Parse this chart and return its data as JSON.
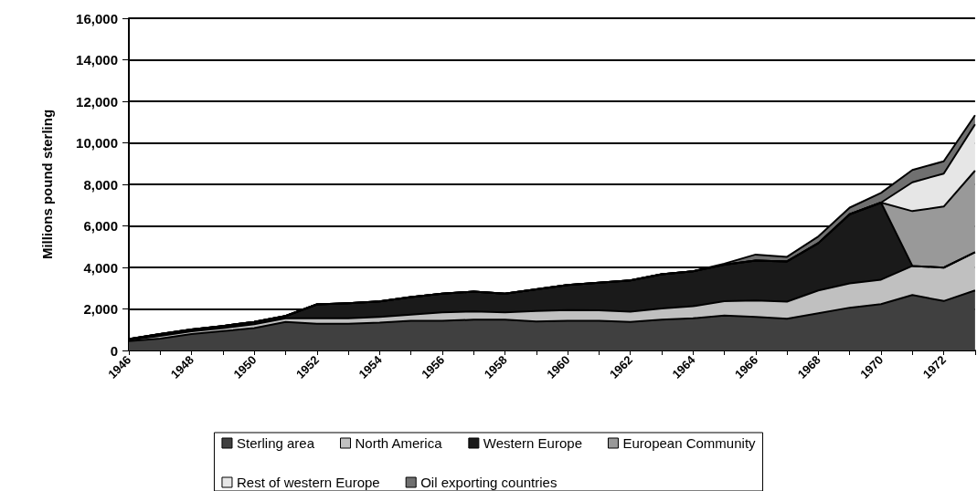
{
  "chart_data": {
    "type": "area",
    "stacked": true,
    "ylabel": "Millions pound sterling",
    "categories": [
      "1946",
      null,
      "1948",
      null,
      "1950",
      null,
      "1952",
      null,
      "1954",
      null,
      "1956",
      null,
      "1958",
      null,
      "1960",
      null,
      "1962",
      null,
      "1964",
      null,
      "1966",
      null,
      "1968",
      null,
      "1970",
      null,
      "1972",
      null
    ],
    "ylim": [
      0,
      16000
    ],
    "yticks": [
      {
        "value": 0,
        "label": "0"
      },
      {
        "value": 2000,
        "label": "2,000"
      },
      {
        "value": 4000,
        "label": "4,000"
      },
      {
        "value": 6000,
        "label": "6,000"
      },
      {
        "value": 8000,
        "label": "8,000"
      },
      {
        "value": 10000,
        "label": "10,000"
      },
      {
        "value": 12000,
        "label": "12,000"
      },
      {
        "value": 14000,
        "label": "14,000"
      },
      {
        "value": 16000,
        "label": "16,000"
      }
    ],
    "grid": "y",
    "legend": "bottom",
    "marker": "none",
    "series": [
      {
        "name": "Sterling area",
        "color": "#404040",
        "values": [
          450,
          570,
          790,
          930,
          1080,
          1370,
          1290,
          1290,
          1340,
          1430,
          1430,
          1480,
          1480,
          1400,
          1430,
          1430,
          1370,
          1480,
          1550,
          1680,
          1620,
          1530,
          1790,
          2060,
          2230,
          2670,
          2380,
          2890
        ]
      },
      {
        "name": "North America",
        "color": "#c0c0c0",
        "values": [
          50,
          130,
          130,
          150,
          180,
          180,
          260,
          260,
          280,
          290,
          410,
          400,
          360,
          500,
          520,
          500,
          500,
          540,
          580,
          690,
          790,
          820,
          1100,
          1170,
          1180,
          1400,
          1610,
          1840
        ]
      },
      {
        "name": "Western Europe",
        "color": "#1a1a1a",
        "values": [
          50,
          90,
          90,
          100,
          110,
          110,
          670,
          730,
          740,
          850,
          900,
          950,
          900,
          1040,
          1200,
          1330,
          1500,
          1650,
          1680,
          1760,
          1920,
          1940,
          2280,
          3330,
          3710,
          0,
          0,
          0
        ]
      },
      {
        "name": "European Community",
        "color": "#999999",
        "values": [
          0,
          0,
          0,
          0,
          0,
          0,
          0,
          0,
          0,
          0,
          0,
          0,
          0,
          0,
          0,
          0,
          0,
          0,
          0,
          0,
          0,
          0,
          0,
          0,
          0,
          2640,
          2940,
          3930
        ]
      },
      {
        "name": "Rest of western Europe",
        "color": "#e6e6e6",
        "values": [
          0,
          0,
          0,
          0,
          0,
          0,
          0,
          0,
          0,
          0,
          0,
          0,
          0,
          0,
          0,
          0,
          0,
          0,
          0,
          0,
          0,
          0,
          0,
          0,
          0,
          1390,
          1590,
          2230
        ]
      },
      {
        "name": "Oil exporting countries",
        "color": "#707070",
        "values": [
          0,
          0,
          0,
          0,
          0,
          0,
          0,
          0,
          0,
          0,
          0,
          0,
          0,
          0,
          0,
          0,
          0,
          0,
          0,
          50,
          290,
          220,
          320,
          320,
          470,
          590,
          590,
          440
        ]
      }
    ]
  }
}
